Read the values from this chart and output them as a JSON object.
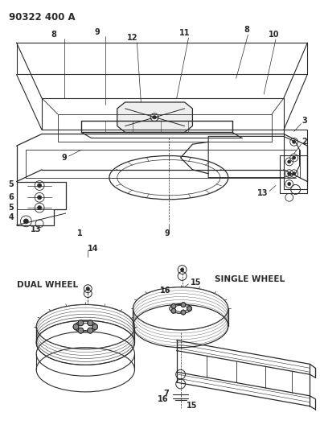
{
  "title": "90322 400 A",
  "bg_color": "#ffffff",
  "line_color": "#2a2a2a",
  "text_color": "#2a2a2a",
  "title_fontsize": 8.5,
  "label_fontsize": 7,
  "fig_width": 3.98,
  "fig_height": 5.33,
  "dpi": 100
}
